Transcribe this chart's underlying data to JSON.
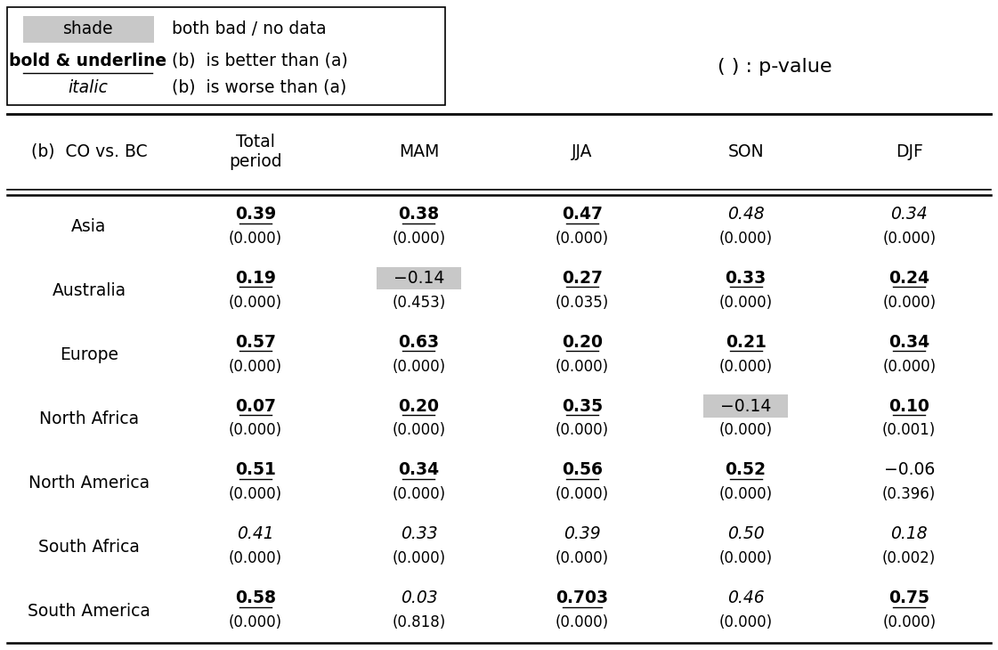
{
  "title_label": "(b)  CO vs. BC",
  "col_headers": [
    "Total\nperiod",
    "MAM",
    "JJA",
    "SON",
    "DJF"
  ],
  "rows": [
    {
      "region": "Asia",
      "values": [
        "0.39",
        "0.38",
        "0.47",
        "0.48",
        "0.34"
      ],
      "pvalues": [
        "(0.000)",
        "(0.000)",
        "(0.000)",
        "(0.000)",
        "(0.000)"
      ],
      "bold_underline": [
        true,
        true,
        true,
        false,
        false
      ],
      "italic": [
        false,
        false,
        false,
        true,
        true
      ],
      "shaded": [
        false,
        false,
        false,
        false,
        false
      ]
    },
    {
      "region": "Australia",
      "values": [
        "0.19",
        "−0.14",
        "0.27",
        "0.33",
        "0.24"
      ],
      "pvalues": [
        "(0.000)",
        "(0.453)",
        "(0.035)",
        "(0.000)",
        "(0.000)"
      ],
      "bold_underline": [
        true,
        false,
        true,
        true,
        true
      ],
      "italic": [
        false,
        false,
        false,
        false,
        false
      ],
      "shaded": [
        false,
        true,
        false,
        false,
        false
      ]
    },
    {
      "region": "Europe",
      "values": [
        "0.57",
        "0.63",
        "0.20",
        "0.21",
        "0.34"
      ],
      "pvalues": [
        "(0.000)",
        "(0.000)",
        "(0.000)",
        "(0.000)",
        "(0.000)"
      ],
      "bold_underline": [
        true,
        true,
        true,
        true,
        true
      ],
      "italic": [
        false,
        false,
        false,
        false,
        false
      ],
      "shaded": [
        false,
        false,
        false,
        false,
        false
      ]
    },
    {
      "region": "North Africa",
      "values": [
        "0.07",
        "0.20",
        "0.35",
        "−0.14",
        "0.10"
      ],
      "pvalues": [
        "(0.000)",
        "(0.000)",
        "(0.000)",
        "(0.000)",
        "(0.001)"
      ],
      "bold_underline": [
        true,
        true,
        true,
        false,
        true
      ],
      "italic": [
        false,
        false,
        false,
        false,
        false
      ],
      "shaded": [
        false,
        false,
        false,
        true,
        false
      ]
    },
    {
      "region": "North America",
      "values": [
        "0.51",
        "0.34",
        "0.56",
        "0.52",
        "−0.06"
      ],
      "pvalues": [
        "(0.000)",
        "(0.000)",
        "(0.000)",
        "(0.000)",
        "(0.396)"
      ],
      "bold_underline": [
        true,
        true,
        true,
        true,
        false
      ],
      "italic": [
        false,
        false,
        false,
        false,
        false
      ],
      "shaded": [
        false,
        false,
        false,
        false,
        false
      ]
    },
    {
      "region": "South Africa",
      "values": [
        "0.41",
        "0.33",
        "0.39",
        "0.50",
        "0.18"
      ],
      "pvalues": [
        "(0.000)",
        "(0.000)",
        "(0.000)",
        "(0.000)",
        "(0.002)"
      ],
      "bold_underline": [
        false,
        false,
        false,
        false,
        false
      ],
      "italic": [
        true,
        true,
        true,
        true,
        true
      ],
      "shaded": [
        false,
        false,
        false,
        false,
        false
      ]
    },
    {
      "region": "South America",
      "values": [
        "0.58",
        "0.03",
        "0.703",
        "0.46",
        "0.75"
      ],
      "pvalues": [
        "(0.000)",
        "(0.818)",
        "(0.000)",
        "(0.000)",
        "(0.000)"
      ],
      "bold_underline": [
        true,
        false,
        true,
        false,
        true
      ],
      "italic": [
        false,
        true,
        false,
        true,
        false
      ],
      "shaded": [
        false,
        false,
        false,
        false,
        false
      ]
    }
  ],
  "legend_shade_label": "shade",
  "legend_shade_desc": "both bad / no data",
  "legend_bold_label": "bold & underline",
  "legend_bold_desc": "(b)  is better than (a)",
  "legend_italic_label": "italic",
  "legend_italic_desc": "(b)  is worse than (a)",
  "pvalue_note": "( ) : p-value",
  "shade_color": "#c8c8c8",
  "bg_color": "#ffffff",
  "text_color": "#000000"
}
